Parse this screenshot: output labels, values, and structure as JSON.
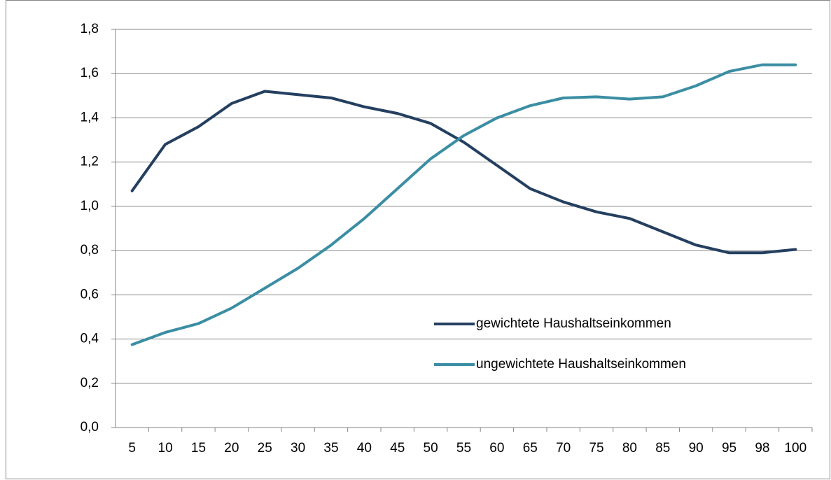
{
  "chart_data": {
    "type": "line",
    "categories": [
      "5",
      "10",
      "15",
      "20",
      "25",
      "30",
      "35",
      "40",
      "45",
      "50",
      "55",
      "60",
      "65",
      "70",
      "75",
      "80",
      "85",
      "90",
      "95",
      "98",
      "100"
    ],
    "series": [
      {
        "name": "gewichtete Haushaltseinkommen",
        "color": "#243f60",
        "values": [
          1.07,
          1.28,
          1.36,
          1.465,
          1.52,
          1.505,
          1.49,
          1.45,
          1.42,
          1.375,
          1.29,
          1.185,
          1.08,
          1.02,
          0.975,
          0.945,
          0.885,
          0.825,
          0.79,
          0.79,
          0.805
        ]
      },
      {
        "name": "ungewichtete Haushaltseinkommen",
        "color": "#3b8ea3",
        "values": [
          0.375,
          0.43,
          0.47,
          0.54,
          0.63,
          0.72,
          0.825,
          0.945,
          1.08,
          1.215,
          1.32,
          1.4,
          1.455,
          1.49,
          1.495,
          1.485,
          1.495,
          1.545,
          1.61,
          1.64,
          1.64
        ]
      }
    ],
    "ylim": [
      0,
      1.8
    ],
    "yticks": [
      {
        "value": 0,
        "label": "0,0"
      },
      {
        "value": 0.2,
        "label": "0,2"
      },
      {
        "value": 0.4,
        "label": "0,4"
      },
      {
        "value": 0.6,
        "label": "0,6"
      },
      {
        "value": 0.8,
        "label": "0,8"
      },
      {
        "value": 1.0,
        "label": "1,0"
      },
      {
        "value": 1.2,
        "label": "1,2"
      },
      {
        "value": 1.4,
        "label": "1,4"
      },
      {
        "value": 1.6,
        "label": "1,6"
      },
      {
        "value": 1.8,
        "label": "1,8"
      }
    ],
    "grid": true
  }
}
